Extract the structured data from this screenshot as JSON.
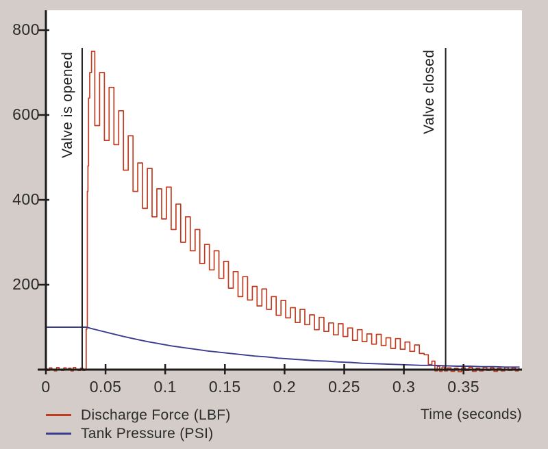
{
  "figure": {
    "background_color": "#d3ccc8",
    "plot_background_color": "#ffffff",
    "axis_color": "#1c1c1c",
    "text_color": "#2b2b2b"
  },
  "chart_data": {
    "type": "line",
    "title": "",
    "xlabel": "Time (seconds)",
    "ylabel": "",
    "xlim": [
      0,
      0.399
    ],
    "ylim": [
      0,
      848
    ],
    "grid": false,
    "legend_position": "bottom-left",
    "x_ticks": [
      0,
      0.05,
      0.1,
      0.15,
      0.2,
      0.25,
      0.3,
      0.35
    ],
    "x_tick_labels": [
      "0",
      "0.05",
      "0.1",
      "0.15",
      "0.2",
      "0.25",
      "0.3",
      "0.35"
    ],
    "y_ticks": [
      0,
      200,
      400,
      600,
      800
    ],
    "y_tick_labels": [
      "",
      "200",
      "400",
      "600",
      "800"
    ],
    "annotations": [
      {
        "label": "Valve is opened",
        "time": 0.0304
      },
      {
        "label": "Valve closed",
        "time": 0.335
      }
    ],
    "series": [
      {
        "name": "Discharge Force (LBF)",
        "color": "#bf3a1e",
        "style": "step",
        "points": [
          [
            0,
            2
          ],
          [
            0.002,
            -2
          ],
          [
            0.004,
            4
          ],
          [
            0.006,
            0
          ],
          [
            0.008,
            -3
          ],
          [
            0.01,
            5
          ],
          [
            0.012,
            1
          ],
          [
            0.014,
            -2
          ],
          [
            0.016,
            4
          ],
          [
            0.018,
            -1
          ],
          [
            0.02,
            3
          ],
          [
            0.022,
            -3
          ],
          [
            0.024,
            5
          ],
          [
            0.026,
            0
          ],
          [
            0.028,
            -2
          ],
          [
            0.03,
            3
          ],
          [
            0.032,
            -2
          ],
          [
            0.0335,
            0
          ],
          [
            0.034,
            95
          ],
          [
            0.0345,
            100
          ],
          [
            0.035,
            420
          ],
          [
            0.0355,
            480
          ],
          [
            0.036,
            640
          ],
          [
            0.0375,
            700
          ],
          [
            0.039,
            750
          ],
          [
            0.043,
            575
          ],
          [
            0.047,
            700
          ],
          [
            0.051,
            540
          ],
          [
            0.055,
            665
          ],
          [
            0.059,
            530
          ],
          [
            0.063,
            610
          ],
          [
            0.067,
            470
          ],
          [
            0.071,
            551
          ],
          [
            0.075,
            420
          ],
          [
            0.079,
            487
          ],
          [
            0.083,
            380
          ],
          [
            0.087,
            474
          ],
          [
            0.091,
            360
          ],
          [
            0.095,
            426
          ],
          [
            0.099,
            355
          ],
          [
            0.103,
            430
          ],
          [
            0.107,
            330
          ],
          [
            0.111,
            390
          ],
          [
            0.115,
            300
          ],
          [
            0.119,
            360
          ],
          [
            0.123,
            280
          ],
          [
            0.127,
            330
          ],
          [
            0.131,
            250
          ],
          [
            0.135,
            295
          ],
          [
            0.139,
            235
          ],
          [
            0.143,
            280
          ],
          [
            0.147,
            215
          ],
          [
            0.151,
            255
          ],
          [
            0.155,
            192
          ],
          [
            0.159,
            231
          ],
          [
            0.163,
            172
          ],
          [
            0.167,
            219
          ],
          [
            0.171,
            164
          ],
          [
            0.175,
            196
          ],
          [
            0.179,
            150
          ],
          [
            0.183,
            190
          ],
          [
            0.187,
            142
          ],
          [
            0.191,
            172
          ],
          [
            0.195,
            128
          ],
          [
            0.199,
            163
          ],
          [
            0.203,
            122
          ],
          [
            0.207,
            146
          ],
          [
            0.211,
            111
          ],
          [
            0.215,
            142
          ],
          [
            0.219,
            106
          ],
          [
            0.223,
            129
          ],
          [
            0.227,
            94
          ],
          [
            0.231,
            123
          ],
          [
            0.235,
            90
          ],
          [
            0.239,
            110
          ],
          [
            0.243,
            82
          ],
          [
            0.247,
            108
          ],
          [
            0.251,
            78
          ],
          [
            0.255,
            98
          ],
          [
            0.259,
            69
          ],
          [
            0.263,
            94
          ],
          [
            0.267,
            66
          ],
          [
            0.271,
            84
          ],
          [
            0.275,
            60
          ],
          [
            0.279,
            83
          ],
          [
            0.283,
            57
          ],
          [
            0.287,
            75
          ],
          [
            0.291,
            50
          ],
          [
            0.295,
            73
          ],
          [
            0.299,
            48
          ],
          [
            0.303,
            65
          ],
          [
            0.307,
            43
          ],
          [
            0.311,
            58
          ],
          [
            0.315,
            38
          ],
          [
            0.319,
            35
          ],
          [
            0.322,
            12
          ],
          [
            0.325,
            20
          ],
          [
            0.327,
            -3
          ],
          [
            0.329,
            8
          ],
          [
            0.331,
            -4
          ],
          [
            0.333,
            6
          ],
          [
            0.335,
            -3
          ],
          [
            0.338,
            4
          ],
          [
            0.341,
            -4
          ],
          [
            0.344,
            3
          ],
          [
            0.347,
            -5
          ],
          [
            0.35,
            4
          ],
          [
            0.353,
            -2
          ],
          [
            0.356,
            5
          ],
          [
            0.359,
            -4
          ],
          [
            0.362,
            3
          ],
          [
            0.365,
            -3
          ],
          [
            0.368,
            5
          ],
          [
            0.371,
            -2
          ],
          [
            0.374,
            4
          ],
          [
            0.377,
            -4
          ],
          [
            0.38,
            3
          ],
          [
            0.383,
            -3
          ],
          [
            0.386,
            5
          ],
          [
            0.389,
            -2
          ],
          [
            0.392,
            4
          ],
          [
            0.395,
            -3
          ],
          [
            0.397,
            2
          ]
        ]
      },
      {
        "name": "Tank Pressure (PSI)",
        "color": "#3c3c8e",
        "style": "line",
        "points": [
          [
            0,
            100
          ],
          [
            0.02,
            100
          ],
          [
            0.03,
            100
          ],
          [
            0.034,
            100
          ],
          [
            0.038,
            97
          ],
          [
            0.045,
            92
          ],
          [
            0.055,
            85
          ],
          [
            0.065,
            78
          ],
          [
            0.075,
            72
          ],
          [
            0.085,
            66
          ],
          [
            0.095,
            61
          ],
          [
            0.105,
            56
          ],
          [
            0.115,
            52
          ],
          [
            0.125,
            48
          ],
          [
            0.135,
            44
          ],
          [
            0.145,
            41
          ],
          [
            0.155,
            38
          ],
          [
            0.165,
            35
          ],
          [
            0.175,
            32
          ],
          [
            0.185,
            30
          ],
          [
            0.195,
            27
          ],
          [
            0.205,
            25
          ],
          [
            0.215,
            23
          ],
          [
            0.225,
            21
          ],
          [
            0.235,
            20
          ],
          [
            0.245,
            18
          ],
          [
            0.255,
            17
          ],
          [
            0.265,
            15
          ],
          [
            0.275,
            14
          ],
          [
            0.285,
            13
          ],
          [
            0.295,
            12
          ],
          [
            0.305,
            11
          ],
          [
            0.315,
            10
          ],
          [
            0.325,
            10
          ],
          [
            0.335,
            9
          ],
          [
            0.345,
            8
          ],
          [
            0.355,
            8
          ],
          [
            0.365,
            7
          ],
          [
            0.375,
            7
          ],
          [
            0.385,
            6
          ],
          [
            0.397,
            6
          ]
        ]
      }
    ]
  }
}
